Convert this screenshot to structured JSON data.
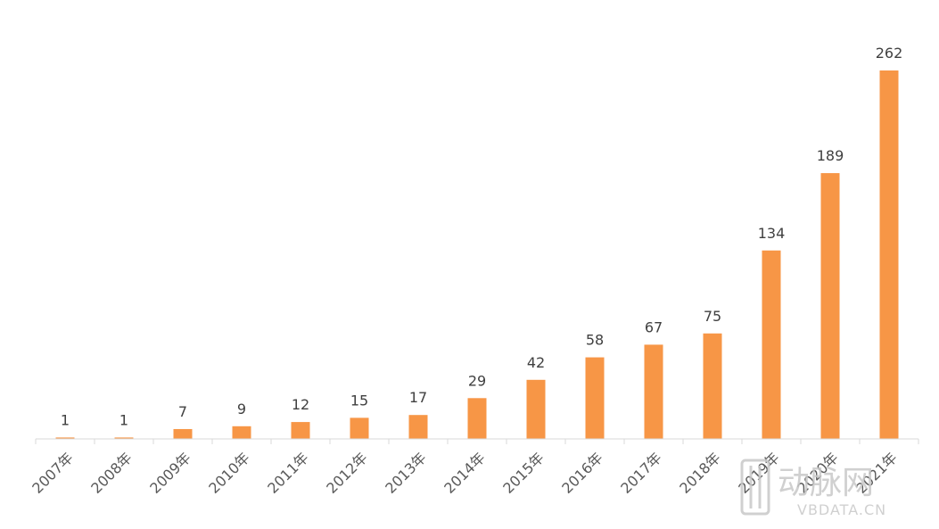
{
  "chart_data": {
    "type": "bar",
    "categories": [
      "2007年",
      "2008年",
      "2009年",
      "2010年",
      "2011年",
      "2012年",
      "2013年",
      "2014年",
      "2015年",
      "2016年",
      "2017年",
      "2018年",
      "2019年",
      "2020年",
      "2021年"
    ],
    "values": [
      1,
      1,
      7,
      9,
      12,
      15,
      17,
      29,
      42,
      58,
      67,
      75,
      134,
      189,
      262
    ],
    "title": "",
    "xlabel": "",
    "ylabel": "",
    "ylim": [
      0,
      262
    ],
    "grid": false,
    "legend": "none",
    "bar_color": "#F79646"
  },
  "watermark": {
    "brand_cn": "动脉网",
    "brand_url": "VBDATA.CN",
    "color": "#c8c8c8"
  },
  "axis_color": "#d9d9d9",
  "label_color": "#404040"
}
